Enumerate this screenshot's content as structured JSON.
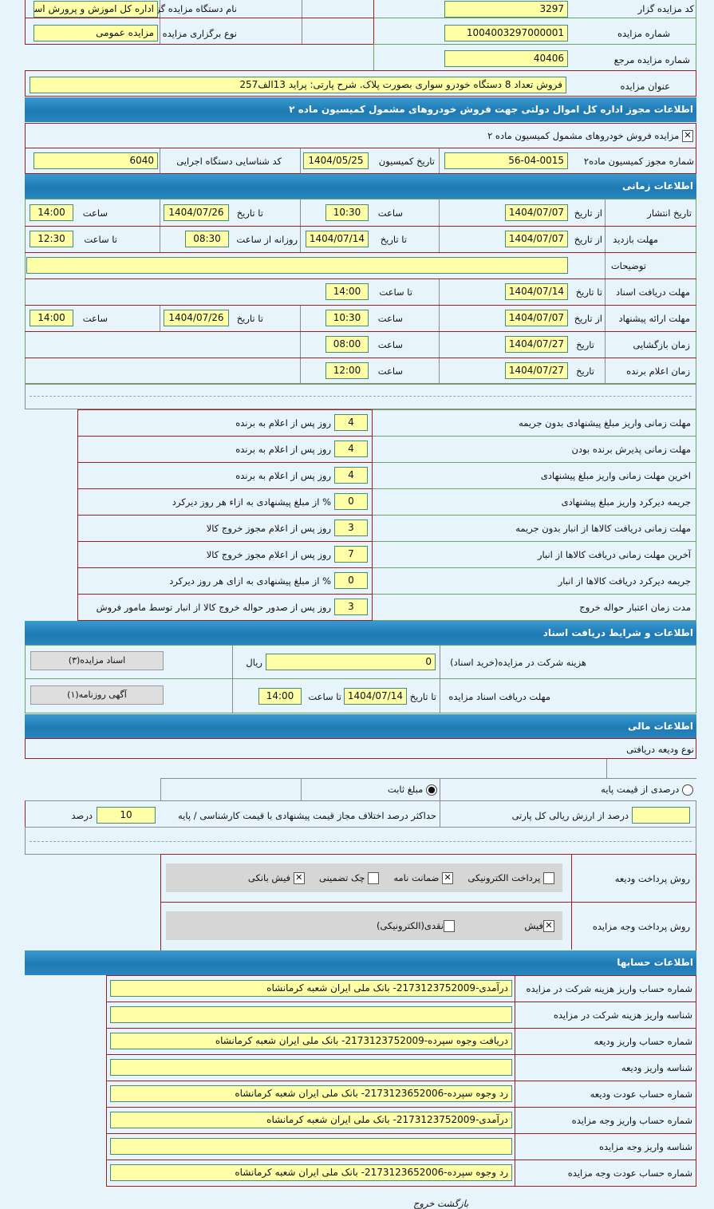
{
  "general": {
    "code_label": "کد مزایده گزار",
    "code": "3297",
    "org_label": "نام دستگاه مزایده گزار",
    "org": "اداره کل اموزش و پرورش استا",
    "number_label": "شماره مزایده",
    "number": "1004003297000001",
    "type_label": "نوع برگزاری مزایده",
    "type": "مزایده عمومی",
    "ref_label": "شماره مزایده مرجع",
    "ref": "40406",
    "title_label": "عنوان مزایده",
    "title": "فروش تعداد 8 دستگاه خودرو سواری بصورت پلاک. شرح پارتی: پراید  13الف257"
  },
  "permit": {
    "header": "اطلاعات مجوز اداره کل اموال دولتی جهت فروش خودروهای مشمول کمیسیون ماده ۲",
    "checkbox_label": "مزایده فروش خودروهای مشمول کمیسیون ماده ۲",
    "checkbox_checked": true,
    "permit_no_label": "شماره مجوز کمیسیون ماده۲",
    "permit_no": "56-04-0015",
    "date_label": "تاریخ کمیسیون",
    "date": "1404/05/25",
    "agency_label": "کد شناسایی دستگاه اجرایی",
    "agency": "6040"
  },
  "timing": {
    "header": "اطلاعات زمانی",
    "rows": [
      {
        "label": "تاریخ انتشار",
        "c1": "از تاریخ",
        "v1": "1404/07/07",
        "c2": "ساعت",
        "v2": "10:30",
        "c3": "تا تاریخ",
        "v3": "1404/07/26",
        "c4": "ساعت",
        "v4": "14:00"
      },
      {
        "label": "مهلت بازدید",
        "c1": "از تاریخ",
        "v1": "1404/07/07",
        "c2": "تا تاریخ",
        "v2": "1404/07/14",
        "c3": "روزانه از ساعت",
        "v3": "08:30",
        "c4": "تا ساعت",
        "v4": "12:30"
      },
      {
        "label": "توضیحات",
        "v1": ""
      },
      {
        "label": "مهلت دریافت اسناد",
        "c1": "تا تاریخ",
        "v1": "1404/07/14",
        "c2": "تا ساعت",
        "v2": "14:00"
      },
      {
        "label": "مهلت ارائه پیشنهاد",
        "c1": "از تاریخ",
        "v1": "1404/07/07",
        "c2": "ساعت",
        "v2": "10:30",
        "c3": "تا تاریخ",
        "v3": "1404/07/26",
        "c4": "ساعت",
        "v4": "14:00"
      },
      {
        "label": "زمان بازگشایی",
        "c1": "تاریخ",
        "v1": "1404/07/27",
        "c2": "ساعت",
        "v2": "08:00"
      },
      {
        "label": "زمان اعلام برنده",
        "c1": "تاریخ",
        "v1": "1404/07/27",
        "c2": "ساعت",
        "v2": "12:00"
      }
    ]
  },
  "deadlines": [
    {
      "label": "مهلت زمانی واریز مبلغ پیشنهادی بدون جریمه",
      "value": "4",
      "unit": "روز پس از اعلام به برنده"
    },
    {
      "label": "مهلت زمانی پذیرش برنده بودن",
      "value": "4",
      "unit": "روز پس از اعلام به برنده"
    },
    {
      "label": "اخرین مهلت زمانی واریز مبلغ پیشنهادی",
      "value": "4",
      "unit": "روز پس از اعلام به برنده"
    },
    {
      "label": "جریمه دیرکرد واریز مبلغ پیشنهادی",
      "value": "0",
      "unit": "% از مبلغ پیشنهادی به ازاء هر روز دیرکرد"
    },
    {
      "label": "مهلت زمانی دریافت کالاها از انبار بدون جریمه",
      "value": "3",
      "unit": "روز پس از اعلام مجوز خروج کالا"
    },
    {
      "label": "آخرین مهلت زمانی دریافت کالاها از انبار",
      "value": "7",
      "unit": "روز پس از اعلام مجوز خروج کالا"
    },
    {
      "label": "جریمه دیرکرد دریافت کالاها از انبار",
      "value": "0",
      "unit": "% از مبلغ پیشنهادی به ازای هر روز دیرکرد"
    },
    {
      "label": "مدت زمان اعتبار حواله خروج",
      "value": "3",
      "unit": "روز پس از صدور حواله خروج کالا از انبار توسط مامور فروش"
    }
  ],
  "documents": {
    "header": "اطلاعات و شرایط دریافت اسناد",
    "fee_label": "هزینه شرکت در مزایده(خرید اسناد)",
    "fee": "0",
    "fee_unit": "ریال",
    "deadline_label": "مهلت دریافت اسناد مزایده",
    "to_date_label": "تا تاریخ",
    "to_date": "1404/07/14",
    "to_time_label": "تا ساعت",
    "to_time": "14:00",
    "docs_button": "اسناد مزایده(۳)",
    "ad_button": "آگهی روزنامه(۱)"
  },
  "financial": {
    "header": "اطلاعات مالی",
    "deposit_type_label": "نوع ودیعه دریافتی",
    "radio_percent": "درصدی از قیمت پایه",
    "radio_fixed": "مبلغ ثابت",
    "selected": "fixed",
    "percent_of_value": "درصد از ارزش ریالی کل پارتی",
    "percent_value": "",
    "max_diff_label": "حداکثر درصد اختلاف مجاز قیمت پیشنهادی با قیمت کارشناسی / پایه",
    "max_diff": "10",
    "max_diff_unit": "درصد",
    "deposit_method_label": "روش پرداخت ودیعه",
    "deposit_methods": [
      {
        "label": "پرداخت الکترونیکی",
        "checked": false
      },
      {
        "label": "ضمانت نامه",
        "checked": true
      },
      {
        "label": "چک تضمینی",
        "checked": false
      },
      {
        "label": "فیش بانکی",
        "checked": true
      }
    ],
    "payment_method_label": "روش پرداخت وجه مزایده",
    "payment_methods": [
      {
        "label": "فیش",
        "checked": true
      },
      {
        "label": "نقدی(الکترونیکی)",
        "checked": false
      }
    ]
  },
  "accounts": {
    "header": "اطلاعات حسابها",
    "rows": [
      {
        "label": "شماره حساب واریز هزینه شرکت در مزایده",
        "value": "درآمدی-2173123752009- بانک ملی ایران شعبه کرمانشاه"
      },
      {
        "label": "شناسه واریز هزینه شرکت در مزایده",
        "value": ""
      },
      {
        "label": "شماره حساب واریز ودیعه",
        "value": "دریافت وجوه سپرده-2173123752009- بانک ملی ایران شعبه کرمانشاه"
      },
      {
        "label": "شناسه واریز ودیعه",
        "value": ""
      },
      {
        "label": "شماره حساب عودت ودیعه",
        "value": "رد وجوه سپرده-2173123652006- بانک ملی ایران شعبه کرمانشاه"
      },
      {
        "label": "شماره حساب واریز وجه مزایده",
        "value": "درآمدی-2173123752009- بانک ملی ایران شعبه کرمانشاه"
      },
      {
        "label": "شناسه واریز وجه مزایده",
        "value": ""
      },
      {
        "label": "شماره حساب عودت وجه مزایده",
        "value": "رد وجوه سپرده-2173123652006- بانک ملی ایران شعبه کرمانشاه"
      }
    ]
  },
  "footer": {
    "back": "بازگشت",
    "exit": "خروج"
  },
  "colors": {
    "header": "#2a86c0",
    "input": "#ffffa8",
    "background": "#e8f4fc"
  }
}
